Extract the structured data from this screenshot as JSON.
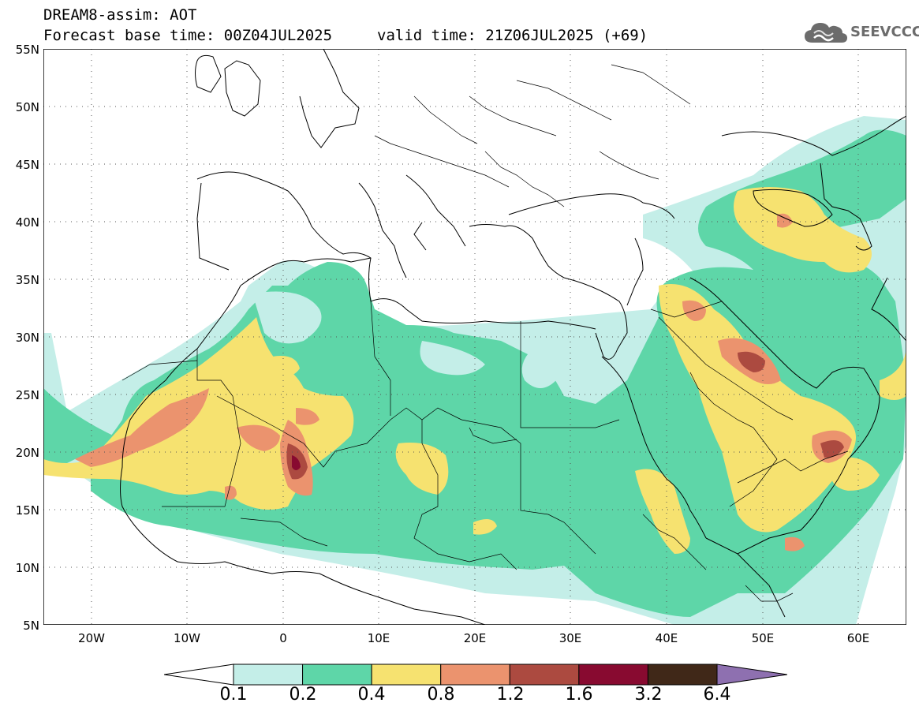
{
  "header": {
    "line1": "DREAM8-assim: AOT",
    "line2": "Forecast base time: 00Z04JUL2025",
    "valid": "valid time: 21Z06JUL2025 (+69)"
  },
  "logo": {
    "text": "SEEVCCC",
    "icon": "cloud-icon",
    "color": "#6c6c6c"
  },
  "map": {
    "projection": "lat-lon",
    "lon_range": [
      -25,
      65
    ],
    "lat_range": [
      5,
      55
    ],
    "grid": "dotted",
    "y_ticks": [
      "5N",
      "10N",
      "15N",
      "20N",
      "25N",
      "30N",
      "35N",
      "40N",
      "45N",
      "50N",
      "55N"
    ],
    "x_ticks": [
      "20W",
      "10W",
      "0",
      "10E",
      "20E",
      "30E",
      "40E",
      "50E",
      "60E"
    ]
  },
  "colorbar": {
    "levels": [
      "0.1",
      "0.2",
      "0.4",
      "0.8",
      "1.2",
      "1.6",
      "3.2",
      "6.4"
    ],
    "colors": [
      "#c4eee8",
      "#5ed6a8",
      "#f6e270",
      "#eb936e",
      "#ac4a40",
      "#880a30",
      "#402818"
    ],
    "under_color": "#ffffff",
    "over_color": "#8e70b0"
  }
}
